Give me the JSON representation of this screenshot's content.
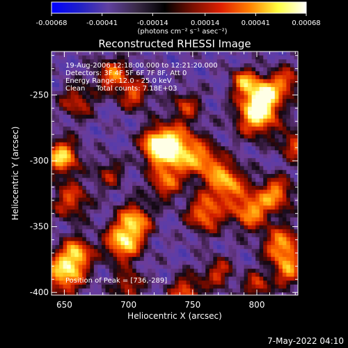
{
  "chart_data": {
    "type": "heatmap",
    "title": "Reconstructed RHESSI Image",
    "xlabel": "Heliocentric X (arcsec)",
    "ylabel": "Heliocentric Y (arcsec)",
    "xlim": [
      640,
      832
    ],
    "ylim": [
      -402,
      -217
    ],
    "x_ticks": [
      650,
      700,
      750,
      800
    ],
    "y_ticks": [
      -250,
      -300,
      -350,
      -400
    ],
    "colorbar": {
      "range": [
        -0.00068,
        0.00068
      ],
      "tick_values": [
        -0.00068,
        -0.00041,
        -0.00014,
        0.00014,
        0.00041,
        0.00068
      ],
      "tick_labels": [
        "-0.00068",
        "-0.00041",
        "-0.00014",
        "0.00014",
        "0.00041",
        "0.00068"
      ],
      "unit_label": "(photons cm⁻² s⁻¹ asec⁻²)",
      "colors": [
        "#0000ff",
        "#2020c8",
        "#6040a0",
        "#3a2a48",
        "#000000",
        "#7a1000",
        "#e02000",
        "#ff8000",
        "#ffff40",
        "#ffffff"
      ]
    },
    "annotations": [
      "19-Aug-2006 12:18:00.000 to 12:21:20.000",
      "Detectors: 3F 4F 5F 6F 7F 8F, Att 0",
      "Energy Range: 12.0 - 25.0 keV",
      "Clean     Total counts: 7.18E+03"
    ],
    "peak_label": "Position of Peak = [736,-289]",
    "peak": [
      736,
      -289
    ],
    "blobs": [
      [
        736,
        -292,
        13,
        1.0
      ],
      [
        722,
        -288,
        8,
        0.8
      ],
      [
        800,
        -265,
        11,
        0.95
      ],
      [
        806,
        -250,
        9,
        0.85
      ],
      [
        790,
        -240,
        7,
        0.7
      ],
      [
        696,
        -362,
        10,
        0.9
      ],
      [
        705,
        -345,
        9,
        0.75
      ],
      [
        650,
        -385,
        11,
        0.9
      ],
      [
        660,
        -370,
        8,
        0.7
      ],
      [
        648,
        -297,
        9,
        0.9
      ],
      [
        655,
        -330,
        10,
        0.55
      ],
      [
        688,
        -235,
        9,
        0.65
      ],
      [
        705,
        -250,
        8,
        0.55
      ],
      [
        660,
        -255,
        9,
        0.5
      ],
      [
        760,
        -340,
        10,
        0.7
      ],
      [
        776,
        -316,
        10,
        0.8
      ],
      [
        795,
        -338,
        10,
        0.75
      ],
      [
        815,
        -325,
        9,
        0.7
      ],
      [
        820,
        -365,
        10,
        0.8
      ],
      [
        825,
        -385,
        8,
        0.6
      ],
      [
        760,
        -300,
        9,
        0.55
      ],
      [
        745,
        -400,
        9,
        0.6
      ],
      [
        770,
        -385,
        8,
        0.5
      ],
      [
        800,
        -395,
        7,
        0.55
      ],
      [
        830,
        -288,
        8,
        0.6
      ],
      [
        823,
        -240,
        8,
        0.55
      ],
      [
        745,
        -258,
        8,
        0.45
      ],
      [
        728,
        -318,
        8,
        0.55
      ],
      [
        685,
        -310,
        8,
        0.4
      ],
      [
        700,
        -395,
        8,
        0.5
      ]
    ]
  },
  "footer": {
    "timestamp": "7-May-2022 04:10"
  }
}
